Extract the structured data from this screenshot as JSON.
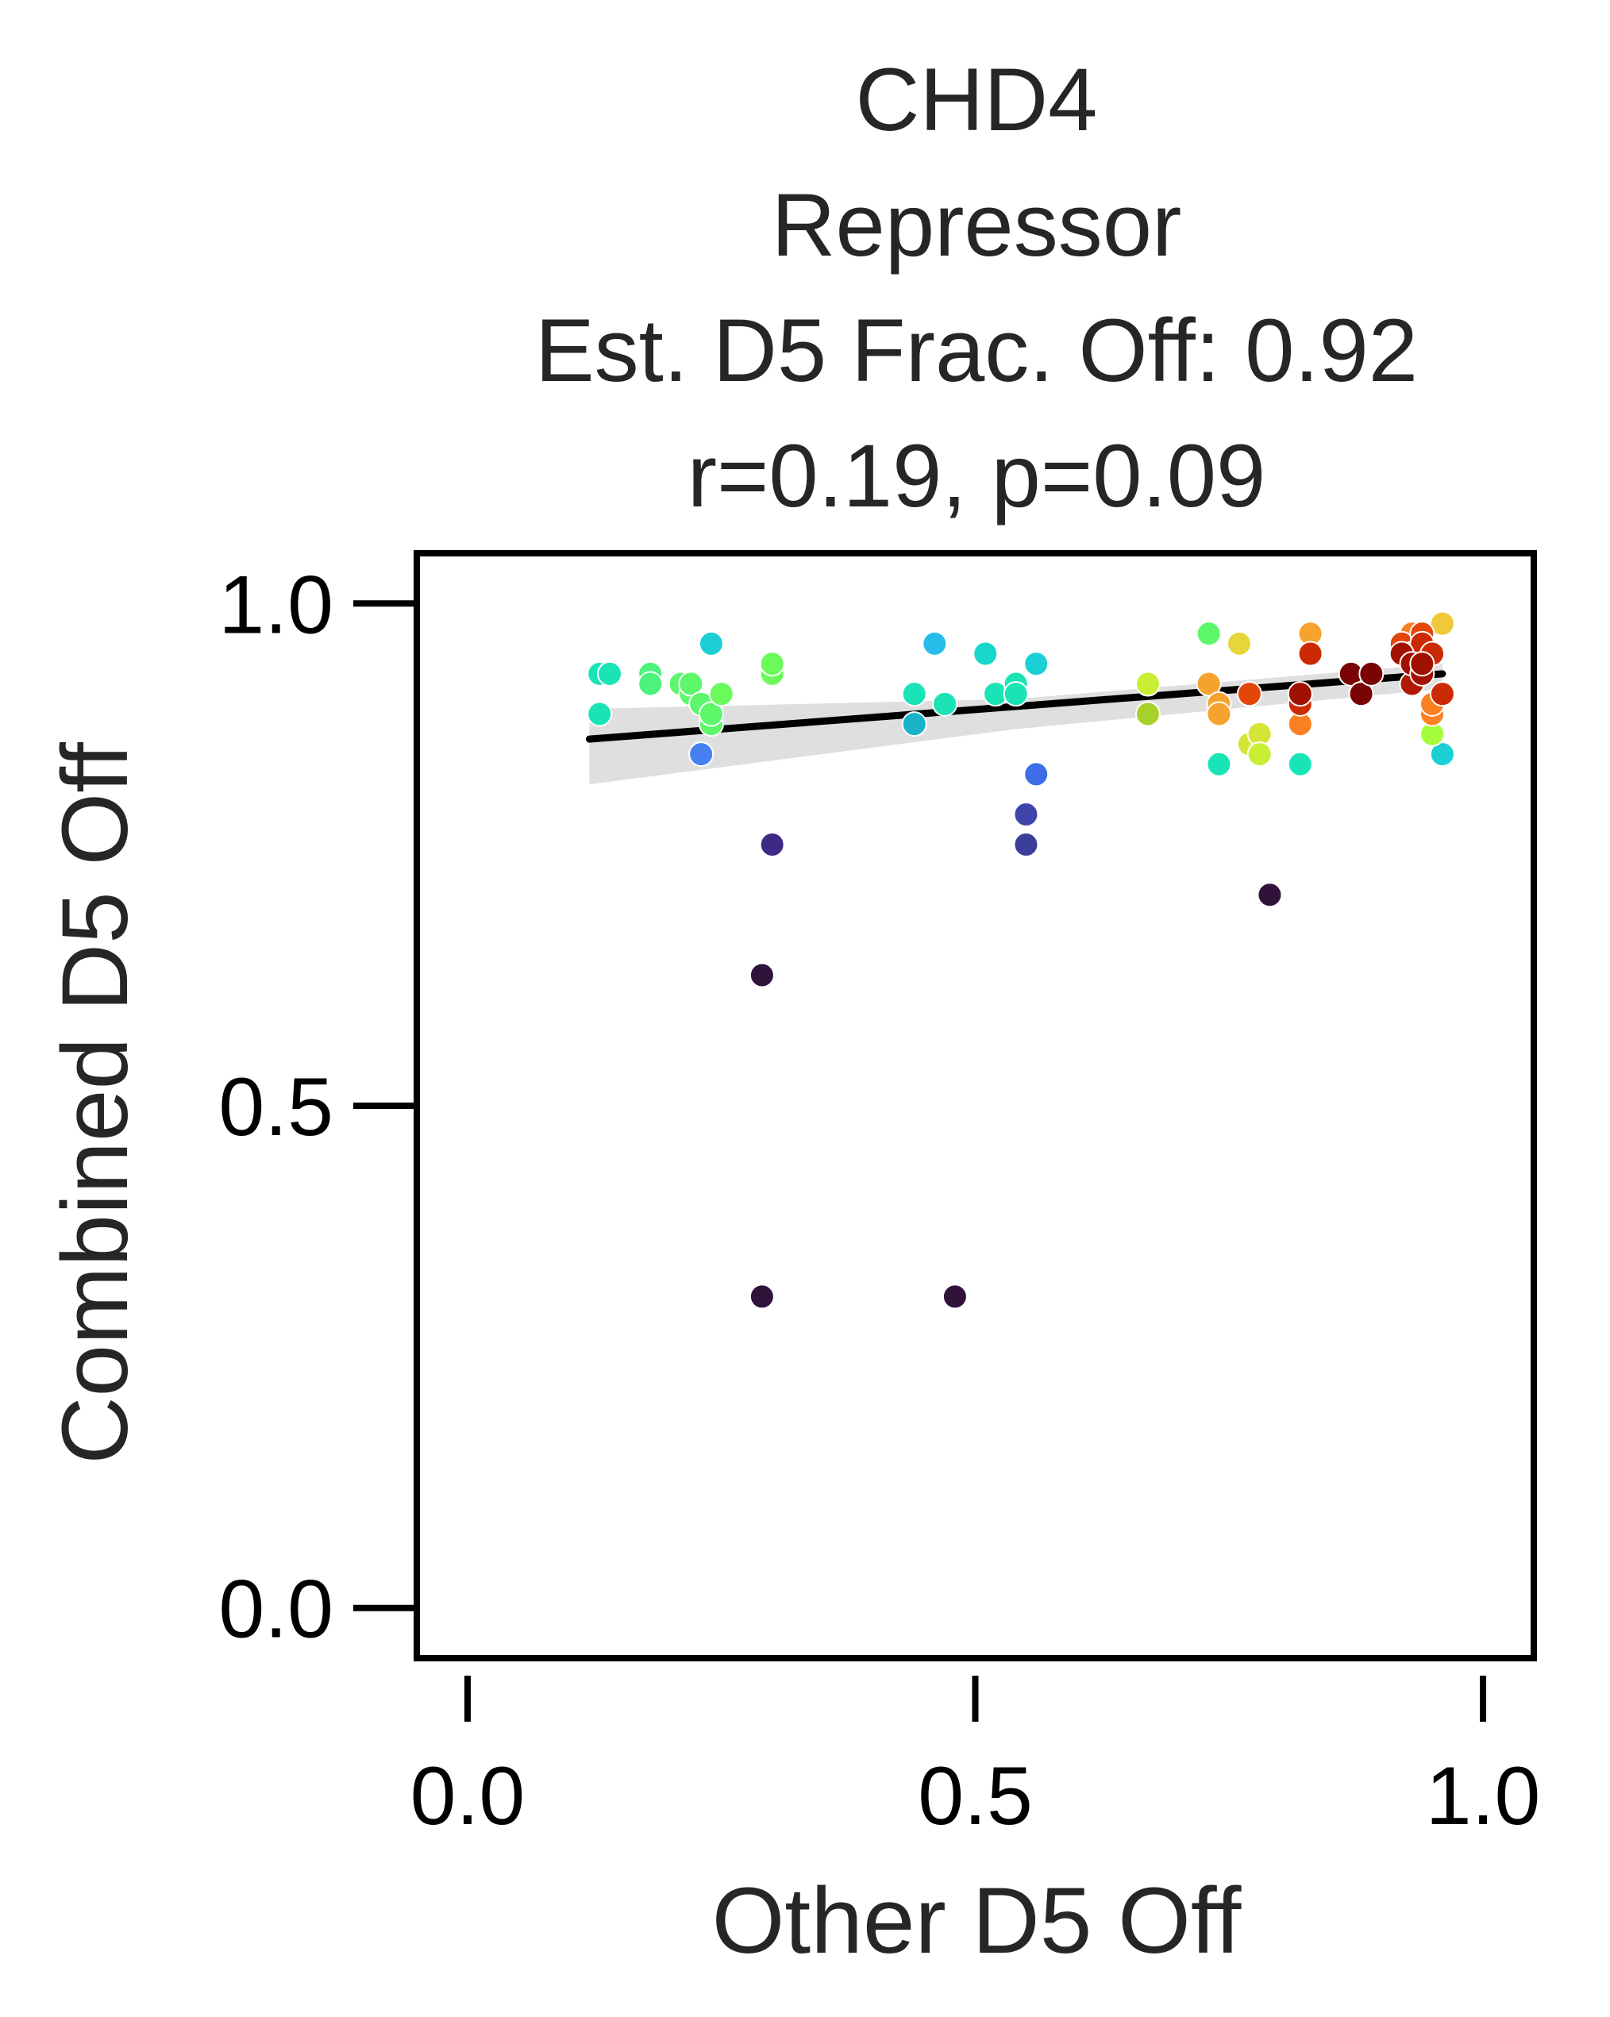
{
  "chart_data": {
    "type": "scatter",
    "title_lines": [
      "CHD4",
      "Repressor",
      "Est. D5 Frac. Off: 0.92",
      "r=0.19, p=0.09"
    ],
    "xlabel": "Other D5 Off",
    "ylabel": "Combined D5 Off",
    "xlim": [
      -0.05,
      1.05
    ],
    "ylim": [
      -0.05,
      1.05
    ],
    "xticks": [
      0.0,
      0.5,
      1.0
    ],
    "xtick_labels": [
      "0.0",
      "0.5",
      "1.0"
    ],
    "yticks": [
      0.0,
      0.5,
      1.0
    ],
    "ytick_labels": [
      "0.0",
      "0.5",
      "1.0"
    ],
    "grid": false,
    "legend": "none",
    "colormap": "turbo",
    "regression_line": {
      "x": [
        0.12,
        0.96
      ],
      "y": [
        0.865,
        0.93
      ],
      "color": "#000000"
    },
    "confidence_band": {
      "x": [
        0.12,
        0.54,
        0.96
      ],
      "upper": [
        0.895,
        0.905,
        0.94
      ],
      "lower": [
        0.82,
        0.875,
        0.915
      ],
      "color": "#d9d9d9"
    },
    "points": [
      {
        "x": 0.29,
        "y": 0.31,
        "color": "#30123b"
      },
      {
        "x": 0.29,
        "y": 0.63,
        "color": "#30123b"
      },
      {
        "x": 0.48,
        "y": 0.31,
        "color": "#30123b"
      },
      {
        "x": 0.79,
        "y": 0.71,
        "color": "#30123b"
      },
      {
        "x": 0.3,
        "y": 0.76,
        "color": "#3e2a85"
      },
      {
        "x": 0.55,
        "y": 0.76,
        "color": "#3b3d9a"
      },
      {
        "x": 0.55,
        "y": 0.79,
        "color": "#4145ab"
      },
      {
        "x": 0.56,
        "y": 0.83,
        "color": "#3f6de8"
      },
      {
        "x": 0.23,
        "y": 0.85,
        "color": "#4680f0"
      },
      {
        "x": 0.46,
        "y": 0.96,
        "color": "#28bceb"
      },
      {
        "x": 0.24,
        "y": 0.96,
        "color": "#1bcfd4"
      },
      {
        "x": 0.51,
        "y": 0.95,
        "color": "#18d6cb"
      },
      {
        "x": 0.56,
        "y": 0.94,
        "color": "#1bd0d5"
      },
      {
        "x": 0.44,
        "y": 0.88,
        "color": "#1ab2c8"
      },
      {
        "x": 0.96,
        "y": 0.85,
        "color": "#1bd0d5"
      },
      {
        "x": 0.13,
        "y": 0.93,
        "color": "#1ae4b6"
      },
      {
        "x": 0.14,
        "y": 0.93,
        "color": "#1ae4b6"
      },
      {
        "x": 0.13,
        "y": 0.89,
        "color": "#1ae4b6"
      },
      {
        "x": 0.44,
        "y": 0.91,
        "color": "#1ae4b6"
      },
      {
        "x": 0.47,
        "y": 0.9,
        "color": "#1ae4b6"
      },
      {
        "x": 0.52,
        "y": 0.91,
        "color": "#1ae4b6"
      },
      {
        "x": 0.54,
        "y": 0.92,
        "color": "#1ae4b6"
      },
      {
        "x": 0.54,
        "y": 0.91,
        "color": "#1ae4b6"
      },
      {
        "x": 0.74,
        "y": 0.84,
        "color": "#1ae4b6"
      },
      {
        "x": 0.82,
        "y": 0.84,
        "color": "#1ae4b6"
      },
      {
        "x": 0.18,
        "y": 0.93,
        "color": "#4cf27a"
      },
      {
        "x": 0.18,
        "y": 0.92,
        "color": "#4cf27a"
      },
      {
        "x": 0.21,
        "y": 0.92,
        "color": "#5cf76a"
      },
      {
        "x": 0.22,
        "y": 0.91,
        "color": "#5cf76a"
      },
      {
        "x": 0.22,
        "y": 0.92,
        "color": "#5cf76a"
      },
      {
        "x": 0.23,
        "y": 0.9,
        "color": "#5cf76a"
      },
      {
        "x": 0.24,
        "y": 0.88,
        "color": "#5cf76a"
      },
      {
        "x": 0.24,
        "y": 0.89,
        "color": "#5cf76a"
      },
      {
        "x": 0.25,
        "y": 0.91,
        "color": "#6afa5c"
      },
      {
        "x": 0.3,
        "y": 0.93,
        "color": "#6afa5c"
      },
      {
        "x": 0.3,
        "y": 0.94,
        "color": "#6afa5c"
      },
      {
        "x": 0.73,
        "y": 0.97,
        "color": "#5cf76a"
      },
      {
        "x": 0.95,
        "y": 0.87,
        "color": "#a4fc3b"
      },
      {
        "x": 0.67,
        "y": 0.92,
        "color": "#c9ef34"
      },
      {
        "x": 0.67,
        "y": 0.89,
        "color": "#a6d12a"
      },
      {
        "x": 0.77,
        "y": 0.86,
        "color": "#d6e535"
      },
      {
        "x": 0.78,
        "y": 0.87,
        "color": "#d6e535"
      },
      {
        "x": 0.78,
        "y": 0.85,
        "color": "#c9ef34"
      },
      {
        "x": 0.76,
        "y": 0.96,
        "color": "#e6d639"
      },
      {
        "x": 0.96,
        "y": 0.98,
        "color": "#f0c93a"
      },
      {
        "x": 0.73,
        "y": 0.92,
        "color": "#f6a32e"
      },
      {
        "x": 0.74,
        "y": 0.9,
        "color": "#f6a32e"
      },
      {
        "x": 0.74,
        "y": 0.89,
        "color": "#f6a32e"
      },
      {
        "x": 0.83,
        "y": 0.97,
        "color": "#f6a32e"
      },
      {
        "x": 0.82,
        "y": 0.88,
        "color": "#fb8022"
      },
      {
        "x": 0.95,
        "y": 0.89,
        "color": "#fb8022"
      },
      {
        "x": 0.95,
        "y": 0.9,
        "color": "#fb8022"
      },
      {
        "x": 0.93,
        "y": 0.97,
        "color": "#fb8022"
      },
      {
        "x": 0.77,
        "y": 0.91,
        "color": "#e4460a"
      },
      {
        "x": 0.82,
        "y": 0.9,
        "color": "#cb2a04"
      },
      {
        "x": 0.83,
        "y": 0.95,
        "color": "#cb2a04"
      },
      {
        "x": 0.92,
        "y": 0.96,
        "color": "#e4460a"
      },
      {
        "x": 0.93,
        "y": 0.95,
        "color": "#e4460a"
      },
      {
        "x": 0.94,
        "y": 0.97,
        "color": "#e4460a"
      },
      {
        "x": 0.94,
        "y": 0.96,
        "color": "#cb2a04"
      },
      {
        "x": 0.95,
        "y": 0.95,
        "color": "#cb2a04"
      },
      {
        "x": 0.96,
        "y": 0.91,
        "color": "#cb2a04"
      },
      {
        "x": 0.93,
        "y": 0.92,
        "color": "#b11a02"
      },
      {
        "x": 0.82,
        "y": 0.91,
        "color": "#a01101"
      },
      {
        "x": 0.87,
        "y": 0.93,
        "color": "#7a0403"
      },
      {
        "x": 0.88,
        "y": 0.91,
        "color": "#7a0403"
      },
      {
        "x": 0.89,
        "y": 0.93,
        "color": "#7a0403"
      },
      {
        "x": 0.92,
        "y": 0.95,
        "color": "#a01101"
      },
      {
        "x": 0.93,
        "y": 0.94,
        "color": "#a01101"
      },
      {
        "x": 0.94,
        "y": 0.93,
        "color": "#a01101"
      },
      {
        "x": 0.94,
        "y": 0.94,
        "color": "#a01101"
      }
    ]
  }
}
